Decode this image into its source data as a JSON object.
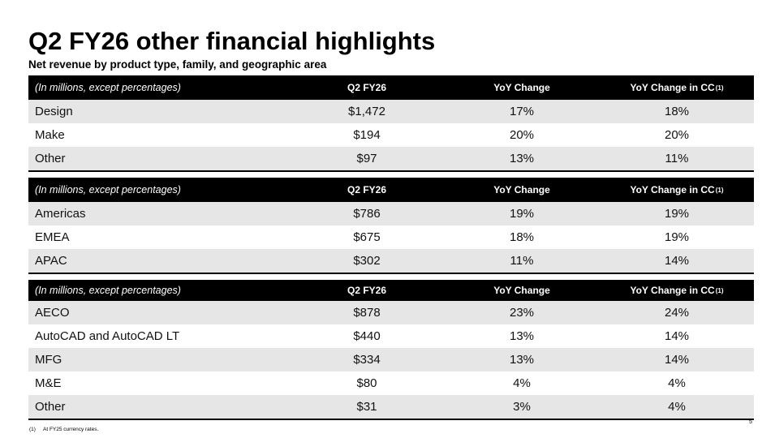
{
  "title": "Q2 FY26 other financial highlights",
  "subtitle": "Net revenue by product type, family, and geographic area",
  "tables": [
    {
      "header": [
        "(In millions, except percentages)",
        "Q2 FY26",
        "YoY Change",
        "YoY Change in CC"
      ],
      "header_note": "(1)",
      "rows": [
        [
          "Design",
          "$1,472",
          "17%",
          "18%"
        ],
        [
          "Make",
          "$194",
          "20%",
          "20%"
        ],
        [
          "Other",
          "$97",
          "13%",
          "11%"
        ]
      ]
    },
    {
      "header": [
        "(In millions, except percentages)",
        "Q2 FY26",
        "YoY Change",
        "YoY Change in CC"
      ],
      "header_note": "(1)",
      "rows": [
        [
          "Americas",
          "$786",
          "19%",
          "19%"
        ],
        [
          "EMEA",
          "$675",
          "18%",
          "19%"
        ],
        [
          "APAC",
          "$302",
          "11%",
          "14%"
        ]
      ]
    },
    {
      "header": [
        "(In millions, except percentages)",
        "Q2 FY26",
        "YoY Change",
        "YoY Change in CC"
      ],
      "header_note": "(1)",
      "rows": [
        [
          "AECO",
          "$878",
          "23%",
          "24%"
        ],
        [
          "AutoCAD and AutoCAD LT",
          "$440",
          "13%",
          "14%"
        ],
        [
          "MFG",
          "$334",
          "13%",
          "14%"
        ],
        [
          "M&E",
          "$80",
          "4%",
          "4%"
        ],
        [
          "Other",
          "$31",
          "3%",
          "4%"
        ]
      ]
    }
  ],
  "footnote": {
    "marker": "(1)",
    "text": "At FY25 currency rates."
  },
  "page_number": "5"
}
